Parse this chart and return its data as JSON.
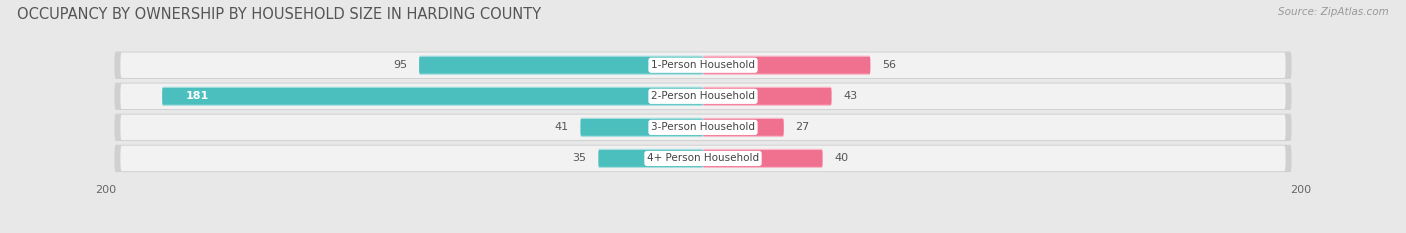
{
  "title": "OCCUPANCY BY OWNERSHIP BY HOUSEHOLD SIZE IN HARDING COUNTY",
  "source": "Source: ZipAtlas.com",
  "categories": [
    "1-Person Household",
    "2-Person Household",
    "3-Person Household",
    "4+ Person Household"
  ],
  "owner_values": [
    95,
    181,
    41,
    35
  ],
  "renter_values": [
    56,
    43,
    27,
    40
  ],
  "owner_color": "#4bbfbe",
  "renter_color": "#f07090",
  "owner_color_light": "#a8dede",
  "renter_color_light": "#f8b8c8",
  "axis_max": 200,
  "background_color": "#e8e8e8",
  "row_bg_color": "#f2f2f2",
  "row_border_color": "#d0d0d0",
  "title_fontsize": 10.5,
  "source_fontsize": 7.5,
  "bar_height": 0.62,
  "value_fontsize": 8,
  "label_fontsize": 7.5
}
